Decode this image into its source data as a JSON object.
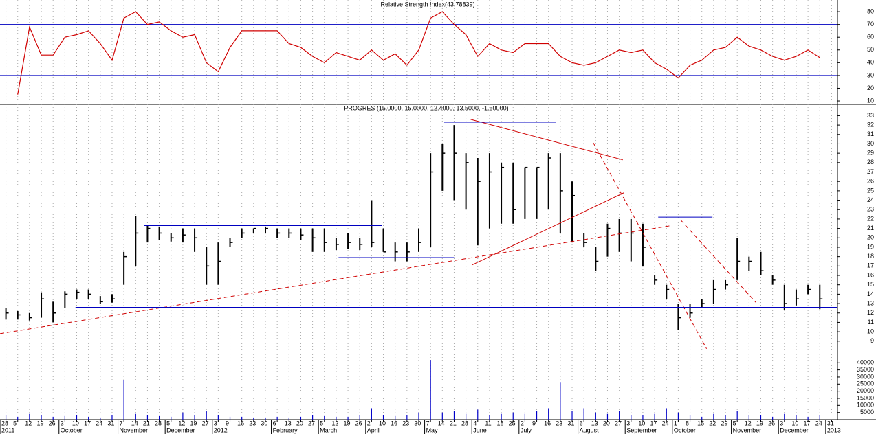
{
  "chart_data": [
    {
      "type": "line",
      "title": "Relative Strength Index(43.78839)",
      "color": "#d00000",
      "level_color": "#0000c0",
      "values": [
        null,
        15,
        68,
        46,
        46,
        60,
        62,
        65,
        55,
        42,
        75,
        80,
        70,
        72,
        65,
        60,
        62,
        40,
        33,
        52,
        65,
        65,
        65,
        65,
        55,
        52,
        45,
        40,
        48,
        45,
        42,
        50,
        42,
        47,
        38,
        50,
        75,
        80,
        70,
        62,
        45,
        55,
        50,
        48,
        55,
        55,
        55,
        45,
        40,
        38,
        40,
        45,
        50,
        48,
        50,
        40,
        35,
        28,
        38,
        42,
        50,
        52,
        60,
        53,
        50,
        45,
        42,
        45,
        50,
        44,
        null
      ],
      "levels": [
        70,
        30
      ],
      "ylim": [
        8.4,
        89.2
      ],
      "yticks": [
        10,
        20,
        30,
        40,
        50,
        60,
        70,
        80
      ]
    },
    {
      "type": "ohlc",
      "title": "PROGRES (15.0000, 15.0000, 12.4000, 13.5000, -1.50000)",
      "color": "#000000",
      "close": [
        12,
        11.8,
        11.5,
        13.5,
        12,
        14,
        14.2,
        14,
        13.2,
        13.5,
        18,
        20.5,
        21,
        20.5,
        20,
        20.3,
        20,
        17,
        17.5,
        19.5,
        20.5,
        21,
        21,
        20.5,
        20.5,
        20.3,
        20,
        19.5,
        19.3,
        19.5,
        19.3,
        19.5,
        18.5,
        18.5,
        18.5,
        19.5,
        27,
        29,
        29,
        28,
        26,
        27,
        27.5,
        23,
        27.5,
        27.5,
        28.5,
        25,
        24.5,
        19.5,
        17.5,
        21,
        20.5,
        20.5,
        19,
        15.5,
        14.5,
        11.5,
        12,
        13,
        14.5,
        15,
        17.5,
        17.5,
        16.5,
        15.5,
        13,
        13.5,
        14.5,
        13.5,
        null
      ],
      "high": [
        12.5,
        12.2,
        12,
        14.2,
        13.2,
        14.3,
        14.5,
        14.5,
        13.8,
        14,
        18.5,
        22.3,
        21.3,
        21.2,
        20.5,
        21,
        21,
        19,
        19.5,
        20,
        21,
        21,
        21.2,
        21,
        21,
        21,
        21,
        21,
        20,
        20.5,
        20,
        24,
        21,
        19.5,
        19.5,
        21,
        29,
        30,
        32,
        29,
        28.5,
        29,
        28,
        28,
        27.5,
        27.5,
        29,
        29,
        26,
        20.5,
        19,
        21.5,
        22,
        22,
        21.5,
        16,
        15,
        13,
        13,
        13.5,
        15.5,
        15.5,
        20,
        18,
        18.5,
        16,
        15,
        14.5,
        15,
        15,
        null
      ],
      "low": [
        11.3,
        11.3,
        11.2,
        11.5,
        11,
        12.5,
        13.5,
        13.5,
        13,
        13.1,
        15,
        17,
        19.5,
        19.8,
        19.6,
        19.5,
        18.5,
        15,
        15,
        19,
        20,
        20.5,
        20.5,
        20,
        20,
        19.8,
        18.5,
        18.5,
        18.7,
        18.8,
        18.7,
        19,
        18.5,
        17.5,
        17.5,
        18.5,
        19,
        25,
        24,
        23,
        19.2,
        21,
        21.5,
        21.5,
        22,
        22,
        23,
        20.5,
        19.5,
        19,
        16.5,
        18,
        18.5,
        17.5,
        17,
        15,
        13.5,
        10.2,
        11.5,
        12.5,
        13,
        14.5,
        15.5,
        16.5,
        16,
        15,
        12.3,
        12.8,
        14,
        12.4,
        null
      ],
      "ylim": [
        8.4,
        34.2
      ],
      "yticks": [
        9,
        10,
        11,
        12,
        13,
        14,
        15,
        16,
        17,
        18,
        19,
        20,
        21,
        22,
        23,
        24,
        25,
        26,
        27,
        28,
        29,
        30,
        31,
        32,
        33
      ],
      "trendlines": [
        {
          "x": [
            -0.5,
            56.4
          ],
          "y": [
            9.8,
            21.3
          ],
          "color": "#d00000",
          "dashed": true
        },
        {
          "x": [
            39.4,
            52.3
          ],
          "y": [
            32.6,
            28.3
          ],
          "color": "#d00000",
          "dashed": false
        },
        {
          "x": [
            39.5,
            52.4
          ],
          "y": [
            17.1,
            24.8
          ],
          "color": "#d00000",
          "dashed": false
        },
        {
          "x": [
            49.8,
            59.4
          ],
          "y": [
            30.1,
            8.2
          ],
          "color": "#d00000",
          "dashed": true
        },
        {
          "x": [
            57.2,
            63.6
          ],
          "y": [
            21.9,
            13.1
          ],
          "color": "#d00000",
          "dashed": true
        },
        {
          "x": [
            37.1,
            46.6
          ],
          "y": [
            32.3,
            32.3
          ],
          "color": "#0000c0",
          "dashed": false
        },
        {
          "x": [
            11.7,
            31.9
          ],
          "y": [
            21.3,
            21.3
          ],
          "color": "#0000c0",
          "dashed": false
        },
        {
          "x": [
            28.2,
            38.0
          ],
          "y": [
            17.9,
            17.9
          ],
          "color": "#0000c0",
          "dashed": false
        },
        {
          "x": [
            55.3,
            59.9
          ],
          "y": [
            22.2,
            22.2
          ],
          "color": "#0000c0",
          "dashed": false
        },
        {
          "x": [
            53.1,
            68.8
          ],
          "y": [
            15.6,
            15.6
          ],
          "color": "#0000c0",
          "dashed": false
        },
        {
          "x": [
            5.9,
            70.5
          ],
          "y": [
            12.6,
            12.6
          ],
          "color": "#0000c0",
          "dashed": false
        }
      ]
    },
    {
      "type": "bar",
      "color": "#0000c8",
      "categories": [
        "28",
        "5",
        "12",
        "19",
        "26",
        "3",
        "10",
        "17",
        "24",
        "31",
        "7",
        "14",
        "21",
        "28",
        "5",
        "12",
        "19",
        "27",
        "3",
        "9",
        "16",
        "23",
        "30",
        "6",
        "13",
        "20",
        "27",
        "5",
        "12",
        "19",
        "26",
        "2",
        "10",
        "16",
        "23",
        "30",
        "7",
        "14",
        "21",
        "28",
        "4",
        "11",
        "18",
        "25",
        "2",
        "9",
        "16",
        "23",
        "31",
        "6",
        "13",
        "20",
        "27",
        "3",
        "10",
        "17",
        "24",
        "1",
        "8",
        "15",
        "22",
        "29",
        "5",
        "12",
        "19",
        "26",
        "3",
        "10",
        "17",
        "24",
        "31"
      ],
      "values": [
        3000,
        2000,
        4000,
        3000,
        2000,
        2500,
        3000,
        2000,
        1500,
        3000,
        28000,
        4000,
        3000,
        2500,
        2000,
        5000,
        3000,
        6000,
        3000,
        2000,
        2000,
        1500,
        1500,
        2000,
        1500,
        2000,
        3000,
        2500,
        2000,
        2000,
        3000,
        8000,
        3000,
        2500,
        3000,
        5000,
        42000,
        5000,
        6000,
        4000,
        7000,
        3000,
        4000,
        5000,
        4000,
        6000,
        8000,
        26000,
        6000,
        8000,
        5000,
        4000,
        6000,
        3000,
        3000,
        4000,
        8000,
        5000,
        3000,
        2000,
        4000,
        3000,
        6000,
        3000,
        3000,
        2000,
        4000,
        3000,
        2000,
        3000,
        null
      ],
      "months": [
        {
          "value": 0,
          "label": "2011"
        },
        {
          "value": 5,
          "label": "October"
        },
        {
          "value": 10,
          "label": "November"
        },
        {
          "value": 14,
          "label": "December"
        },
        {
          "value": 18,
          "label": "2012"
        },
        {
          "value": 23,
          "label": "February"
        },
        {
          "value": 27,
          "label": "March"
        },
        {
          "value": 31,
          "label": "April"
        },
        {
          "value": 36,
          "label": "May"
        },
        {
          "value": 40,
          "label": "June"
        },
        {
          "value": 44,
          "label": "July"
        },
        {
          "value": 49,
          "label": "August"
        },
        {
          "value": 53,
          "label": "September"
        },
        {
          "value": 57,
          "label": "October"
        },
        {
          "value": 62,
          "label": "November"
        },
        {
          "value": 66,
          "label": "December"
        },
        {
          "value": 70,
          "label": "2013"
        }
      ],
      "ylim": [
        0,
        44000
      ],
      "yticks": [
        5000,
        10000,
        15000,
        20000,
        25000,
        30000,
        35000,
        40000
      ]
    }
  ]
}
